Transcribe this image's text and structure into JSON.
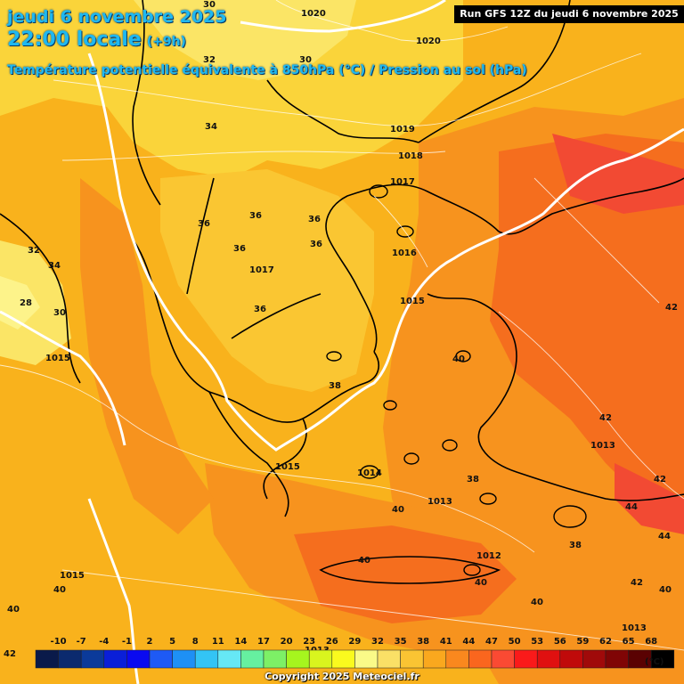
{
  "header": {
    "date": "jeudi 6 novembre 2025",
    "time": "22:00 locale",
    "offset": "(+9h)",
    "title": "Température potentielle équivalente à 850hPa (°C) / Pression au sol (hPa)",
    "run": "Run GFS 12Z du jeudi 6 novembre 2025"
  },
  "map_labels": {
    "pressure": [
      "1020",
      "1020",
      "1019",
      "1018",
      "1017",
      "1017",
      "1016",
      "1015",
      "1015",
      "1015",
      "1014",
      "1013",
      "1013",
      "1012",
      "1015",
      "1013",
      "1013"
    ],
    "temperature": [
      "30",
      "32",
      "30",
      "34",
      "36",
      "36",
      "36",
      "36",
      "36",
      "32",
      "34",
      "28",
      "30",
      "36",
      "38",
      "40",
      "42",
      "42",
      "40",
      "38",
      "40",
      "42",
      "38",
      "40",
      "40",
      "40",
      "40",
      "42",
      "44",
      "44",
      "42",
      "40"
    ]
  },
  "legend": {
    "ticks": [
      "-10",
      "-7",
      "-4",
      "-1",
      "2",
      "5",
      "8",
      "11",
      "14",
      "17",
      "20",
      "23",
      "26",
      "29",
      "32",
      "35",
      "38",
      "41",
      "44",
      "47",
      "50",
      "53",
      "56",
      "59",
      "62",
      "65",
      "68"
    ],
    "unit": "(°C)",
    "colors": [
      "#0a1a4a",
      "#0b2a6e",
      "#0b3a9a",
      "#0a1fd8",
      "#0a0af0",
      "#1e5af5",
      "#1e90f5",
      "#33c4f5",
      "#66e8f5",
      "#66f0a0",
      "#7df066",
      "#a6f51e",
      "#d9f51e",
      "#fafa1e",
      "#fafa88",
      "#fae066",
      "#fac433",
      "#faa81e",
      "#fa881e",
      "#fa661e",
      "#fa4a33",
      "#fa1a1a",
      "#e01010",
      "#c00a0a",
      "#a00a0a",
      "#800505",
      "#5a0202",
      "#000000"
    ]
  },
  "copyright": "Copyright 2025 Meteociel.fr"
}
